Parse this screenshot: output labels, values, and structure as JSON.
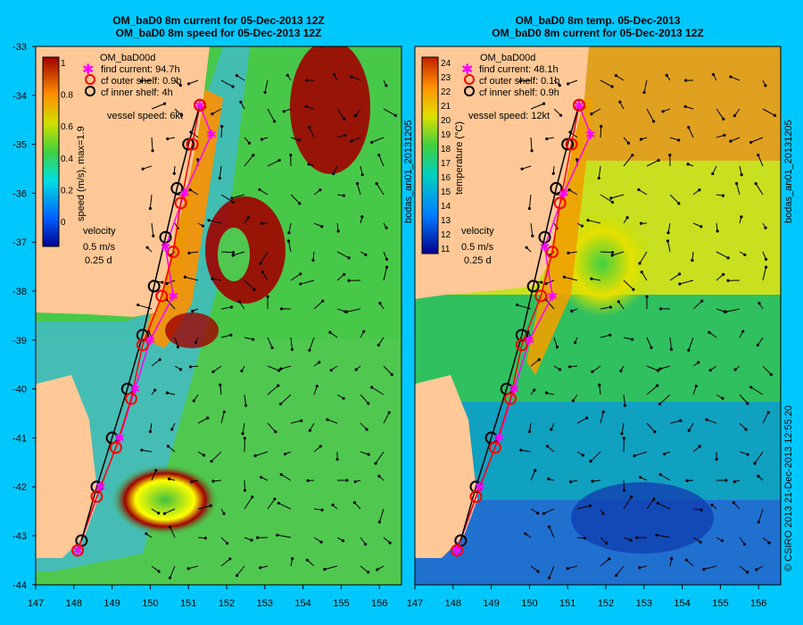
{
  "left_panel": {
    "title_line1": "OM_baD0 8m current for 05-Dec-2013 12Z",
    "title_line2": "OM_baD0 8m speed for 05-Dec-2013 12Z",
    "legend_title": "OM_baD00d",
    "legend_items": [
      "find current: 94.7h",
      "cf outer shelf: 0.9h",
      "cf inner shelf: 4h"
    ],
    "vessel_speed": "vessel speed: 6kt",
    "colorbar_label": "speed (m/s), max=1.9",
    "colorbar_ticks": [
      "1",
      "0.8",
      "0.6",
      "0.4",
      "0.2",
      "0"
    ],
    "velocity_label": "velocity",
    "velocity_scale": "0.5 m/s",
    "velocity_time": "0.25 d"
  },
  "right_panel": {
    "title_line1": "OM_baD0 8m temp. 05-Dec-2013",
    "title_line2": "OM_baD0 8m current for 05-Dec-2013 12Z",
    "legend_title": "OM_baD00d",
    "legend_items": [
      "find current: 48.1h",
      "cf outer shelf: 0.1h",
      "cf inner shelf: 0.9h"
    ],
    "vessel_speed": "vessel speed: 12kt",
    "colorbar_label": "temperature (°C)",
    "colorbar_ticks": [
      "24",
      "23",
      "22",
      "21",
      "20",
      "19",
      "18",
      "17",
      "16",
      "15",
      "14",
      "13",
      "12",
      "11"
    ],
    "velocity_label": "velocity",
    "velocity_scale": "0.5 m/s",
    "velocity_time": "0.25 d"
  },
  "side_labels": {
    "left": "bodas_an01_20131205",
    "right": "bodas_an01_20131205",
    "footer": "© CSIRO 2013   21-Dec-2013 12:55:20"
  },
  "axes": {
    "y_ticks": [
      "-33",
      "-34",
      "-35",
      "-36",
      "-37",
      "-38",
      "-39",
      "-40",
      "-41",
      "-42",
      "-43",
      "-44"
    ],
    "left_x_ticks": [
      "147",
      "148",
      "149",
      "150",
      "151",
      "152",
      "153",
      "154",
      "155",
      "156"
    ],
    "right_x_ticks": [
      "147",
      "148",
      "149",
      "150",
      "151",
      "152",
      "153",
      "154",
      "155",
      "156"
    ]
  },
  "colors": {
    "background": "#00c8ff",
    "land": "#ffc896",
    "black_route": "#000000",
    "red_route": "#ff0000",
    "magenta_route": "#ff00ff"
  },
  "routes": {
    "black": [
      [
        148.2,
        -43.1
      ],
      [
        148.6,
        -42.0
      ],
      [
        149.0,
        -41.0
      ],
      [
        149.4,
        -40.0
      ],
      [
        149.8,
        -38.9
      ],
      [
        150.1,
        -37.9
      ],
      [
        150.4,
        -36.9
      ],
      [
        150.7,
        -35.9
      ],
      [
        151.0,
        -35.0
      ],
      [
        151.3,
        -34.2
      ]
    ],
    "red": [
      [
        148.1,
        -43.3
      ],
      [
        148.6,
        -42.2
      ],
      [
        149.1,
        -41.2
      ],
      [
        149.5,
        -40.2
      ],
      [
        149.8,
        -39.1
      ],
      [
        150.3,
        -38.1
      ],
      [
        150.6,
        -37.2
      ],
      [
        150.8,
        -36.2
      ],
      [
        151.1,
        -35.0
      ],
      [
        151.3,
        -34.2
      ]
    ],
    "magenta": [
      [
        148.1,
        -43.3
      ],
      [
        148.7,
        -42.0
      ],
      [
        149.2,
        -41.0
      ],
      [
        149.6,
        -40.0
      ],
      [
        150.0,
        -39.0
      ],
      [
        150.6,
        -38.1
      ],
      [
        150.4,
        -37.1
      ],
      [
        150.9,
        -36.0
      ],
      [
        151.6,
        -34.8
      ],
      [
        151.3,
        -34.2
      ]
    ]
  }
}
